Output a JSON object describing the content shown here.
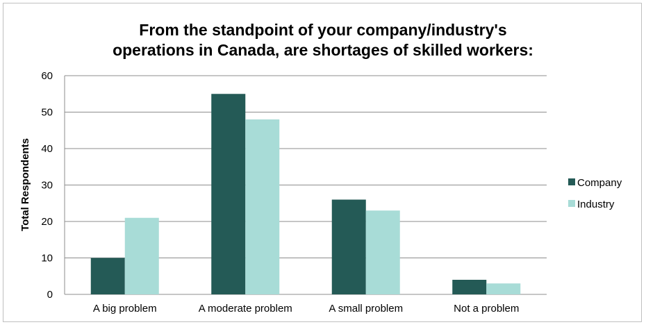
{
  "chart_data": {
    "type": "bar",
    "title_lines": [
      "From the standpoint of your company/industry's",
      "operations in Canada, are shortages of skilled workers:"
    ],
    "xlabel": "",
    "ylabel": "Total Respondents",
    "ylim": [
      0,
      60
    ],
    "yticks": [
      0,
      10,
      20,
      30,
      40,
      50,
      60
    ],
    "categories": [
      "A big problem",
      "A moderate problem",
      "A small problem",
      "Not a problem"
    ],
    "series": [
      {
        "name": "Company",
        "color": "#245a56",
        "values": [
          10,
          55,
          26,
          4
        ]
      },
      {
        "name": "Industry",
        "color": "#a8dcd7",
        "values": [
          21,
          48,
          23,
          3
        ]
      }
    ],
    "grid": true,
    "legend_position": "right"
  }
}
